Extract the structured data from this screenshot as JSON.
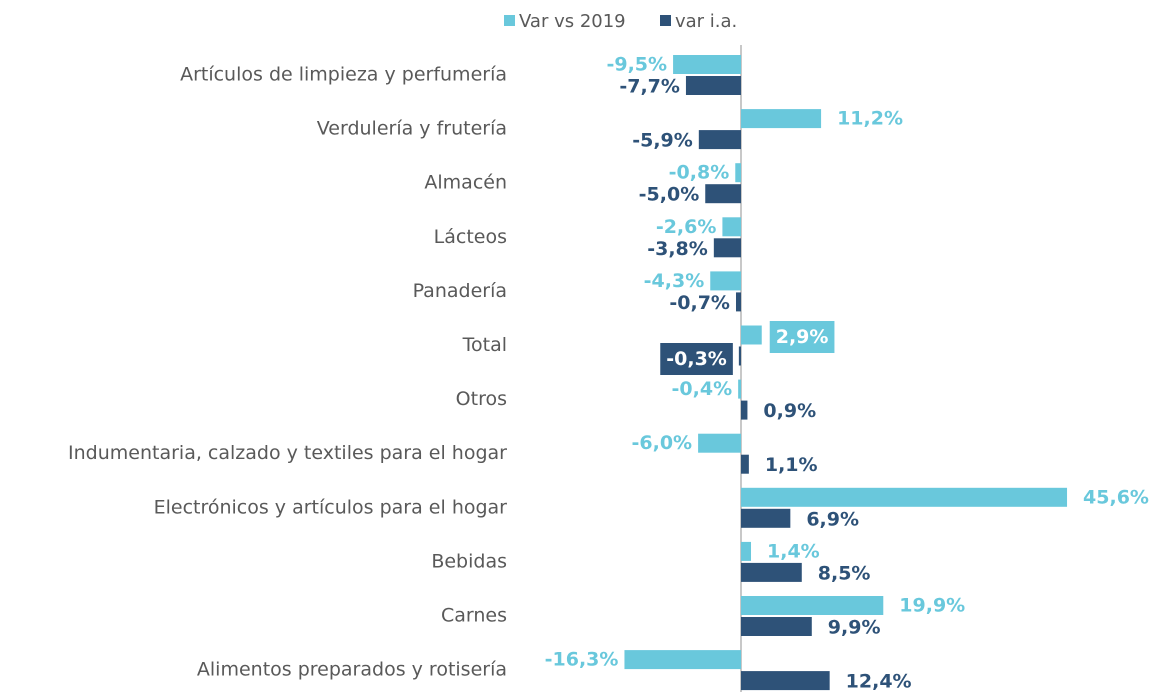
{
  "chart_data": {
    "type": "bar",
    "orientation": "horizontal",
    "categories": [
      "Artículos de limpieza y perfumería",
      "Verdulería y frutería",
      "Almacén",
      "Lácteos",
      "Panadería",
      "Total",
      "Otros",
      "Indumentaria, calzado y textiles para el hogar",
      "Electrónicos y artículos para el hogar",
      "Bebidas",
      "Carnes",
      "Alimentos preparados y rotisería"
    ],
    "series": [
      {
        "name": "Var vs 2019",
        "color": "#69c8dc",
        "values": [
          -9.5,
          11.2,
          -0.8,
          -2.6,
          -4.3,
          2.9,
          -0.4,
          -6.0,
          45.6,
          1.4,
          19.9,
          -16.3
        ],
        "value_labels": [
          "-9,5%",
          "11,2%",
          "-0,8%",
          "-2,6%",
          "-4,3%",
          "2,9%",
          "-0,4%",
          "-6,0%",
          "45,6%",
          "1,4%",
          "19,9%",
          "-16,3%"
        ]
      },
      {
        "name": "var i.a.",
        "color": "#2e5278",
        "values": [
          -7.7,
          -5.9,
          -5.0,
          -3.8,
          -0.7,
          -0.3,
          0.9,
          1.1,
          6.9,
          8.5,
          9.9,
          12.4
        ],
        "value_labels": [
          "-7,7%",
          "-5,9%",
          "-5,0%",
          "-3,8%",
          "-0,7%",
          "-0,3%",
          "0,9%",
          "1,1%",
          "6,9%",
          "8,5%",
          "9,9%",
          "12,4%"
        ]
      }
    ],
    "legend": "top"
  }
}
